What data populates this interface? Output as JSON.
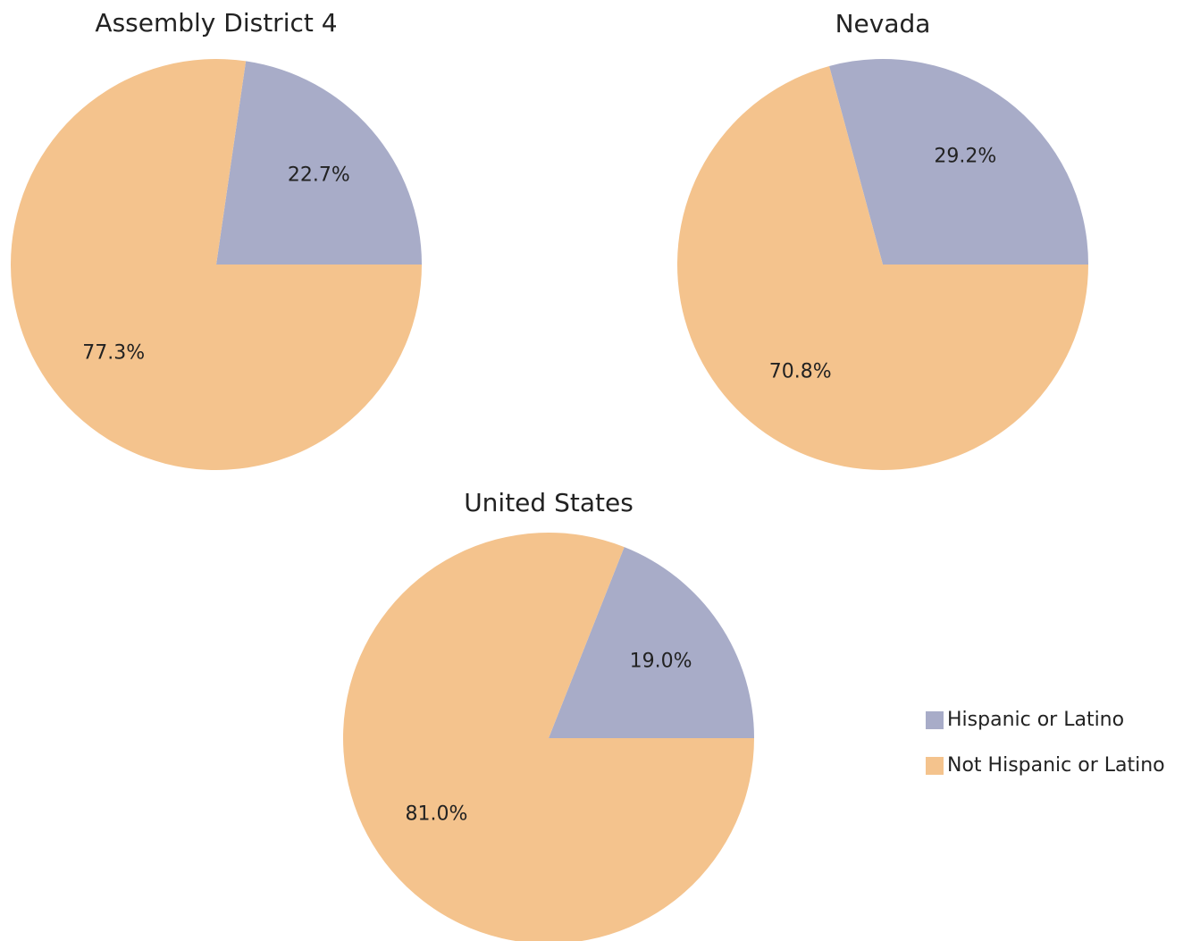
{
  "chart_data": [
    {
      "type": "pie",
      "title": "Assembly District 4",
      "categories": [
        "Hispanic or Latino",
        "Not Hispanic or Latino"
      ],
      "values": [
        22.7,
        77.3
      ],
      "value_labels": [
        "22.7%",
        "77.3%"
      ],
      "colors": [
        "#a8acc8",
        "#f4c38d"
      ],
      "legend": "right"
    },
    {
      "type": "pie",
      "title": "Nevada",
      "categories": [
        "Hispanic or Latino",
        "Not Hispanic or Latino"
      ],
      "values": [
        29.2,
        70.8
      ],
      "value_labels": [
        "29.2%",
        "70.8%"
      ],
      "colors": [
        "#a8acc8",
        "#f4c38d"
      ]
    },
    {
      "type": "pie",
      "title": "United States",
      "categories": [
        "Hispanic or Latino",
        "Not Hispanic or Latino"
      ],
      "values": [
        19.0,
        81.0
      ],
      "value_labels": [
        "19.0%",
        "81.0%"
      ],
      "colors": [
        "#a8acc8",
        "#f4c38d"
      ]
    }
  ]
}
